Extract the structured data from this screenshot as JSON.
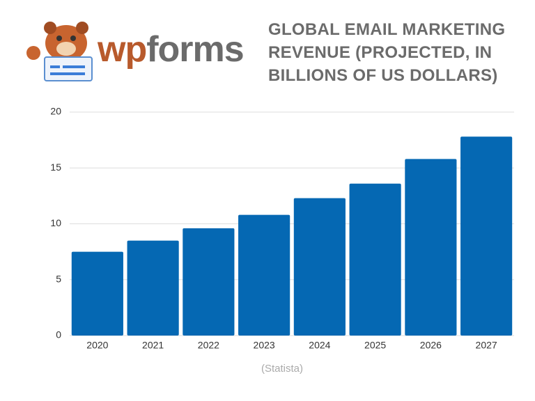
{
  "brand": [
    "wp",
    "forms"
  ],
  "chart_data": {
    "type": "bar",
    "title": "GLOBAL EMAIL MARKETING REVENUE (PROJECTED, IN BILLIONS OF US DOLLARS)",
    "categories": [
      "2020",
      "2021",
      "2022",
      "2023",
      "2024",
      "2025",
      "2026",
      "2027"
    ],
    "values": [
      7.5,
      8.5,
      9.6,
      10.8,
      12.3,
      13.6,
      15.8,
      17.8
    ],
    "color": "#0568b3",
    "ylim": [
      0,
      20
    ],
    "yticks": [
      0,
      5,
      10,
      15,
      20
    ],
    "grid": true,
    "source": "(Statista)"
  }
}
